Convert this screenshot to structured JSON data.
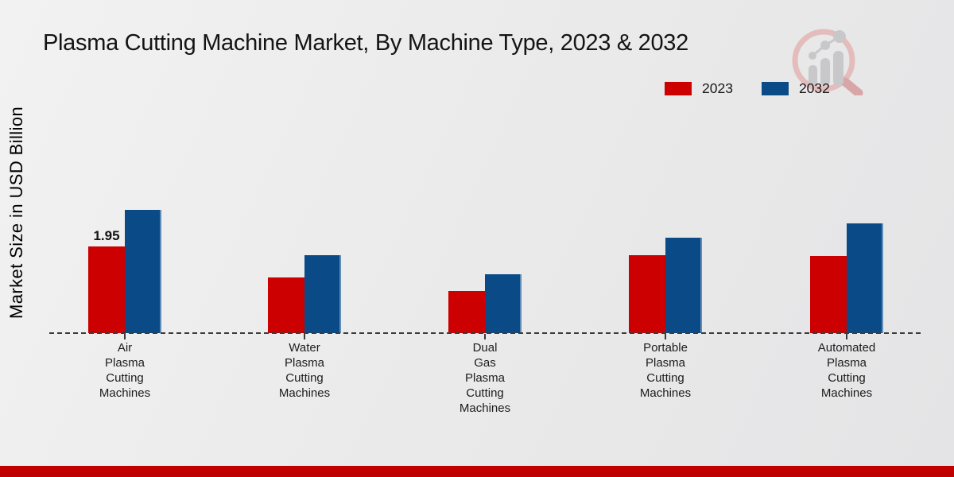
{
  "title": "Plasma Cutting Machine Market, By Machine Type, 2023 & 2032",
  "y_axis_label": "Market Size in USD Billion",
  "legend": [
    {
      "label": "2023",
      "color": "#cc0000"
    },
    {
      "label": "2032",
      "color": "#0a4a87"
    }
  ],
  "colors": {
    "series_2023": "#cc0000",
    "series_2032": "#0a4a87",
    "footer_band": "#c00000",
    "baseline": "#3c3c3c",
    "background": "#ebebeb"
  },
  "watermark": {
    "icon": "bar-chart-magnifier-logo"
  },
  "chart_data": {
    "type": "bar",
    "title": "Plasma Cutting Machine Market, By Machine Type, 2023 & 2032",
    "xlabel": "",
    "ylabel": "Market Size in USD Billion",
    "categories": [
      "Air Plasma Cutting Machines",
      "Water Plasma Cutting Machines",
      "Dual Gas Plasma Cutting Machines",
      "Portable Plasma Cutting Machines",
      "Automated Plasma Cutting Machines"
    ],
    "series": [
      {
        "name": "2023",
        "color": "#cc0000",
        "values": [
          1.95,
          1.25,
          0.94,
          1.76,
          1.74
        ]
      },
      {
        "name": "2032",
        "color": "#0a4a87",
        "values": [
          2.78,
          1.75,
          1.33,
          2.15,
          2.47
        ]
      }
    ],
    "data_labels": [
      {
        "series_index": 0,
        "category_index": 0,
        "text": "1.95"
      }
    ],
    "ylim": [
      0,
      3.2
    ],
    "grid": false,
    "baseline_style": "dashed",
    "legend_position": "top-right",
    "y_axis_ticks_visible": false
  }
}
